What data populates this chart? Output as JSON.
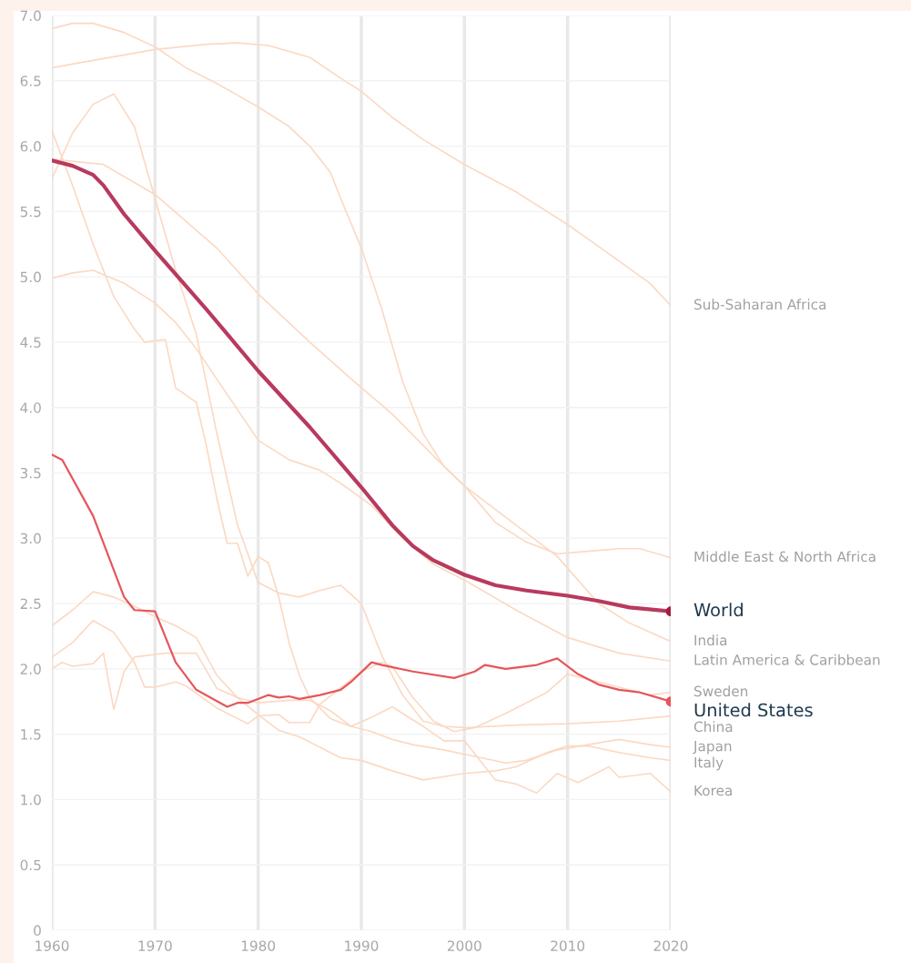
{
  "chart_data": {
    "type": "line",
    "xlim": [
      1960,
      2020
    ],
    "xticks": [
      1960,
      1970,
      1980,
      1990,
      2000,
      2010,
      2020
    ],
    "ylim": [
      0,
      7
    ],
    "yticks": [
      0,
      {
        "value": 0.5,
        "label": "0.5"
      },
      {
        "value": 1,
        "label": "1.0"
      },
      {
        "value": 1.5,
        "label": "1.5"
      },
      {
        "value": 2,
        "label": "2.0"
      },
      {
        "value": 2.5,
        "label": "2.5"
      },
      {
        "value": 3,
        "label": "3.0"
      },
      {
        "value": 3.5,
        "label": "3.5"
      },
      {
        "value": 4,
        "label": "4.0"
      },
      {
        "value": 4.5,
        "label": "4.5"
      },
      {
        "value": 5,
        "label": "5.0"
      },
      {
        "value": 5.5,
        "label": "5.5"
      },
      {
        "value": 6,
        "label": "6.0"
      },
      {
        "value": 6.5,
        "label": "6.5"
      },
      {
        "value": 7,
        "label": "7.0"
      }
    ],
    "grid": true,
    "line_style": "solid",
    "series": [
      {
        "name": "Sub-Saharan Africa",
        "color": "#fbd9c4",
        "x": [
          1960,
          1965,
          1970,
          1975,
          1978,
          1981,
          1985,
          1988,
          1990,
          1993,
          1996,
          2000,
          2005,
          2010,
          2015,
          2018,
          2020
        ],
        "values": [
          6.6,
          6.67,
          6.74,
          6.78,
          6.79,
          6.77,
          6.68,
          6.52,
          6.42,
          6.22,
          6.05,
          5.86,
          5.65,
          5.4,
          5.12,
          4.95,
          4.78
        ]
      },
      {
        "name": "Middle East & North Africa",
        "color": "#fbd9c4",
        "x": [
          1960,
          1962,
          1964,
          1967,
          1970,
          1973,
          1976,
          1980,
          1983,
          1985,
          1987,
          1988,
          1990,
          1992,
          1994,
          1996,
          1998,
          2000,
          2003,
          2006,
          2009,
          2012,
          2015,
          2017,
          2020
        ],
        "values": [
          6.9,
          6.94,
          6.94,
          6.87,
          6.76,
          6.6,
          6.48,
          6.3,
          6.15,
          6.0,
          5.8,
          5.6,
          5.22,
          4.75,
          4.2,
          3.8,
          3.55,
          3.4,
          3.12,
          2.97,
          2.88,
          2.9,
          2.92,
          2.92,
          2.85
        ]
      },
      {
        "name": "World",
        "color": "#b83a5e",
        "x": [
          1960,
          1962,
          1964,
          1965,
          1967,
          1970,
          1975,
          1980,
          1985,
          1990,
          1993,
          1995,
          1997,
          2000,
          2003,
          2006,
          2010,
          2013,
          2016,
          2020
        ],
        "values": [
          5.89,
          5.85,
          5.78,
          5.7,
          5.48,
          5.2,
          4.75,
          4.28,
          3.85,
          3.39,
          3.1,
          2.94,
          2.83,
          2.72,
          2.64,
          2.6,
          2.56,
          2.52,
          2.47,
          2.44
        ]
      },
      {
        "name": "India",
        "color": "#fbd9c4",
        "x": [
          1960,
          1965,
          1970,
          1976,
          1980,
          1985,
          1989,
          1993,
          1997,
          2000,
          2005,
          2009,
          2013,
          2016,
          2020
        ],
        "values": [
          5.9,
          5.86,
          5.63,
          5.22,
          4.87,
          4.5,
          4.22,
          3.95,
          3.63,
          3.4,
          3.1,
          2.86,
          2.5,
          2.35,
          2.21
        ]
      },
      {
        "name": "Latin America & Caribbean",
        "color": "#fbd9c4",
        "x": [
          1960,
          1962,
          1964,
          1967,
          1970,
          1972,
          1974,
          1977,
          1980,
          1983,
          1986,
          1988,
          1991,
          1994,
          1997,
          2000,
          2005,
          2010,
          2015,
          2020
        ],
        "values": [
          4.99,
          5.03,
          5.05,
          4.95,
          4.8,
          4.65,
          4.45,
          4.1,
          3.75,
          3.6,
          3.52,
          3.42,
          3.25,
          3.0,
          2.8,
          2.68,
          2.45,
          2.24,
          2.12,
          2.06
        ]
      },
      {
        "name": "Sweden",
        "color": "#fbd9c4",
        "x": [
          1960,
          1962,
          1964,
          1966,
          1968,
          1969,
          1970,
          1972,
          1973,
          1976,
          1979,
          1980,
          1982,
          1983,
          1985,
          1986,
          1990,
          1992,
          1993,
          1995,
          1997,
          1999,
          2001,
          2004,
          2006,
          2008,
          2010,
          2012,
          2015,
          2018,
          2020
        ],
        "values": [
          2.09,
          2.2,
          2.37,
          2.28,
          2.05,
          1.86,
          1.86,
          1.9,
          1.87,
          1.7,
          1.58,
          1.64,
          1.65,
          1.59,
          1.59,
          1.73,
          1.98,
          2.05,
          2.02,
          1.78,
          1.6,
          1.52,
          1.55,
          1.66,
          1.74,
          1.82,
          1.96,
          1.92,
          1.86,
          1.8,
          1.82
        ]
      },
      {
        "name": "United States",
        "color": "#e5565c",
        "x": [
          1960,
          1961,
          1964,
          1967,
          1968,
          1970,
          1972,
          1974,
          1977,
          1978,
          1979,
          1981,
          1982,
          1983,
          1984,
          1986,
          1988,
          1989,
          1991,
          1992,
          1995,
          1999,
          2001,
          2002,
          2004,
          2007,
          2009,
          2011,
          2013,
          2015,
          2017,
          2020
        ],
        "values": [
          3.64,
          3.6,
          3.17,
          2.55,
          2.45,
          2.44,
          2.05,
          1.84,
          1.71,
          1.74,
          1.74,
          1.8,
          1.78,
          1.79,
          1.77,
          1.8,
          1.84,
          1.9,
          2.05,
          2.03,
          1.98,
          1.93,
          1.98,
          2.03,
          2.0,
          2.03,
          2.08,
          1.96,
          1.88,
          1.84,
          1.82,
          1.75
        ]
      },
      {
        "name": "China",
        "color": "#fbd9c4",
        "x": [
          1960,
          1962,
          1964,
          1966,
          1968,
          1970,
          1972,
          1974,
          1976,
          1978,
          1980,
          1982,
          1984,
          1986,
          1988,
          1990,
          1992,
          1994,
          1996,
          1998,
          2000,
          2005,
          2010,
          2015,
          2020
        ],
        "values": [
          5.75,
          6.1,
          6.32,
          6.4,
          6.15,
          5.6,
          5.05,
          4.56,
          3.8,
          3.1,
          2.66,
          2.58,
          2.55,
          2.6,
          2.64,
          2.5,
          2.1,
          1.8,
          1.6,
          1.56,
          1.55,
          1.57,
          1.58,
          1.6,
          1.64
        ]
      },
      {
        "name": "Japan",
        "color": "#fbd9c4",
        "x": [
          1960,
          1961,
          1962,
          1964,
          1965,
          1966,
          1967,
          1968,
          1971,
          1974,
          1976,
          1978,
          1980,
          1983,
          1985,
          1987,
          1989,
          1991,
          1993,
          1995,
          1998,
          2001,
          2004,
          2006,
          2009,
          2012,
          2015,
          2018,
          2020
        ],
        "values": [
          2.0,
          2.05,
          2.02,
          2.04,
          2.12,
          1.69,
          1.98,
          2.09,
          2.12,
          2.12,
          1.85,
          1.78,
          1.74,
          1.76,
          1.76,
          1.68,
          1.56,
          1.52,
          1.46,
          1.42,
          1.38,
          1.33,
          1.28,
          1.3,
          1.38,
          1.42,
          1.46,
          1.42,
          1.4
        ]
      },
      {
        "name": "Italy",
        "color": "#fbd9c4",
        "x": [
          1960,
          1962,
          1964,
          1966,
          1968,
          1970,
          1972,
          1974,
          1976,
          1978,
          1980,
          1982,
          1984,
          1986,
          1988,
          1990,
          1993,
          1996,
          2000,
          2003,
          2005,
          2008,
          2010,
          2012,
          2015,
          2018,
          2020
        ],
        "values": [
          2.33,
          2.45,
          2.59,
          2.55,
          2.48,
          2.4,
          2.33,
          2.24,
          1.95,
          1.78,
          1.65,
          1.53,
          1.48,
          1.4,
          1.32,
          1.3,
          1.22,
          1.15,
          1.2,
          1.22,
          1.25,
          1.36,
          1.41,
          1.41,
          1.36,
          1.32,
          1.3
        ]
      },
      {
        "name": "Korea",
        "color": "#fbd9c4",
        "x": [
          1960,
          1962,
          1964,
          1966,
          1968,
          1969,
          1971,
          1972,
          1974,
          1975,
          1976,
          1977,
          1978,
          1979,
          1980,
          1981,
          1982,
          1983,
          1984,
          1985,
          1987,
          1989,
          1991,
          1993,
          1994,
          1996,
          1998,
          2000,
          2001,
          2003,
          2005,
          2007,
          2009,
          2011,
          2014,
          2015,
          2018,
          2020
        ],
        "values": [
          6.12,
          5.7,
          5.25,
          4.85,
          4.6,
          4.5,
          4.52,
          4.15,
          4.04,
          3.7,
          3.3,
          2.96,
          2.96,
          2.71,
          2.86,
          2.81,
          2.55,
          2.2,
          1.95,
          1.78,
          1.62,
          1.56,
          1.63,
          1.71,
          1.66,
          1.56,
          1.45,
          1.45,
          1.35,
          1.15,
          1.12,
          1.05,
          1.2,
          1.13,
          1.25,
          1.17,
          1.2,
          1.06
        ]
      },
      {
        "type": "scatter",
        "color": "#a0203e",
        "x": [
          2020
        ],
        "values": [
          2.44
        ]
      },
      {
        "type": "scatter",
        "color": "#e5565c",
        "x": [
          2020
        ],
        "values": [
          1.75
        ]
      }
    ]
  }
}
